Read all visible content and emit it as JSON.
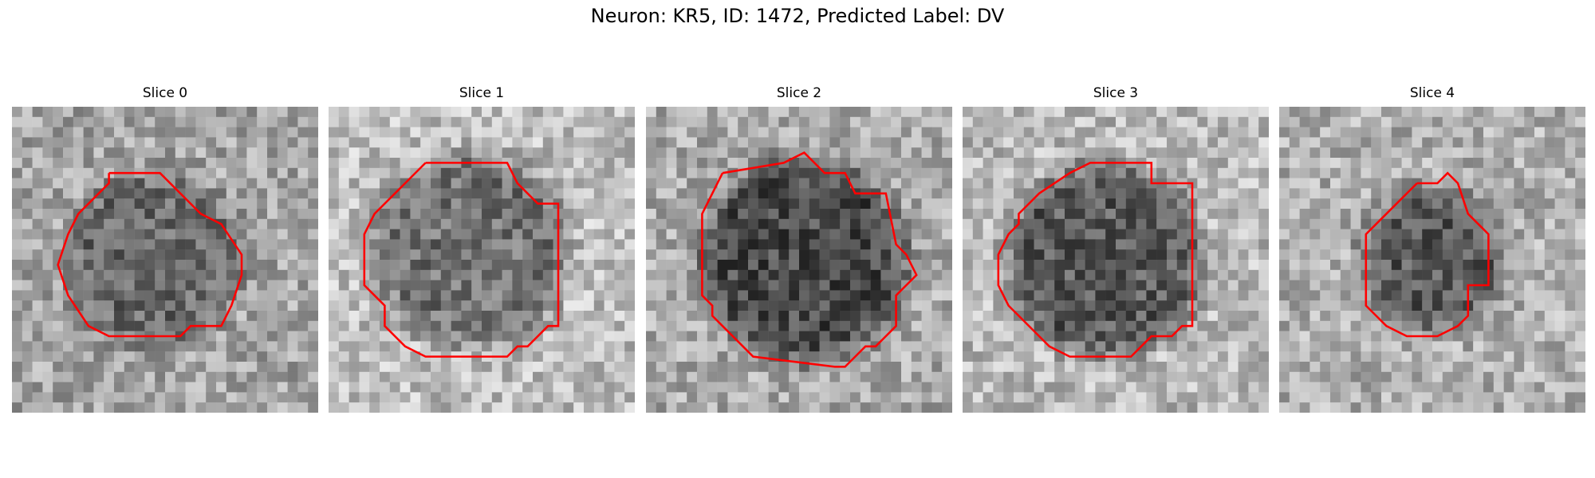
{
  "figure": {
    "title": "Neuron: KR5, ID: 1472, Predicted Label: DV"
  },
  "contour_color": "#ff0000",
  "panels": [
    {
      "title": "Slice 0",
      "image": "slice-0-grayscale-microscopy"
    },
    {
      "title": "Slice 1",
      "image": "slice-1-grayscale-microscopy"
    },
    {
      "title": "Slice 2",
      "image": "slice-2-grayscale-microscopy"
    },
    {
      "title": "Slice 3",
      "image": "slice-3-grayscale-microscopy"
    },
    {
      "title": "Slice 4",
      "image": "slice-4-grayscale-microscopy"
    }
  ]
}
